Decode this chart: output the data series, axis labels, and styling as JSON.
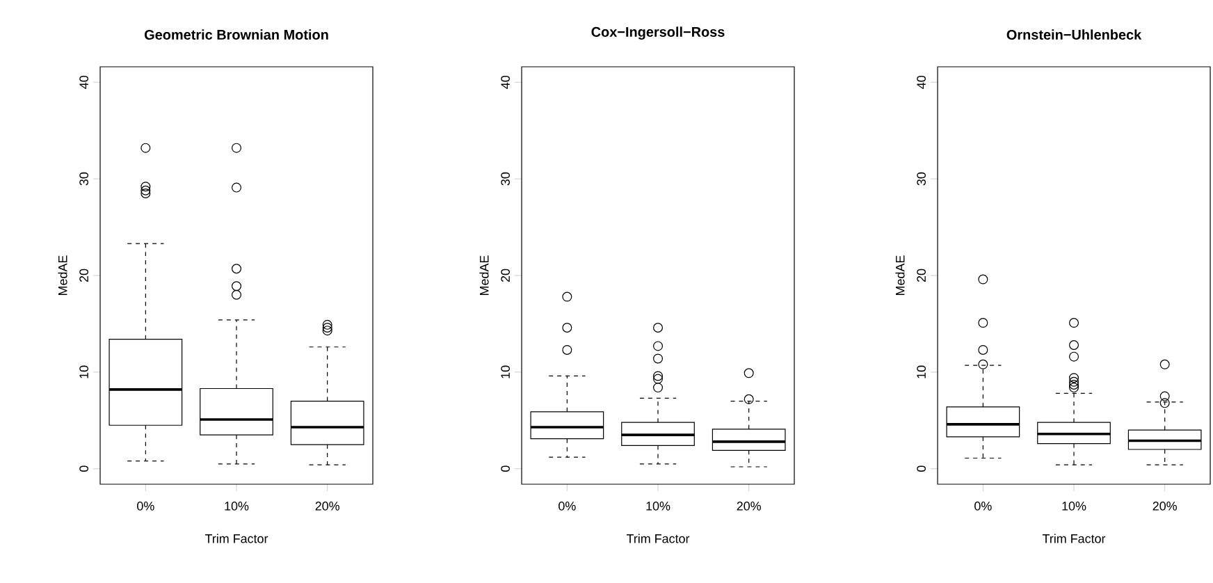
{
  "chart_data": [
    {
      "type": "box",
      "title": "Geometric Brownian Motion",
      "xlabel": "Trim Factor",
      "ylabel": "MedAE",
      "categories": [
        "0%",
        "10%",
        "20%"
      ],
      "ylim": [
        -1.6,
        41.6
      ],
      "yticks": [
        0,
        10,
        20,
        30,
        40
      ],
      "marker": "circle",
      "color": "#000000",
      "boxes": [
        {
          "low": 0.8,
          "q1": 4.5,
          "median": 8.2,
          "q3": 13.4,
          "high": 23.3,
          "outliers": [
            33.2,
            29.2,
            28.8,
            28.5
          ]
        },
        {
          "low": 0.5,
          "q1": 3.5,
          "median": 5.1,
          "q3": 8.3,
          "high": 15.4,
          "outliers": [
            33.2,
            29.1,
            20.7,
            18.9,
            18.0
          ]
        },
        {
          "low": 0.4,
          "q1": 2.5,
          "median": 4.3,
          "q3": 7.0,
          "high": 12.6,
          "outliers": [
            14.9,
            14.6,
            14.3
          ]
        }
      ]
    },
    {
      "type": "box",
      "title": "Cox−Ingersoll−Ross",
      "xlabel": "Trim Factor",
      "ylabel": "MedAE",
      "categories": [
        "0%",
        "10%",
        "20%"
      ],
      "ylim": [
        -1.6,
        41.6
      ],
      "yticks": [
        0,
        10,
        20,
        30,
        40
      ],
      "marker": "circle",
      "color": "#000000",
      "boxes": [
        {
          "low": 1.2,
          "q1": 3.1,
          "median": 4.3,
          "q3": 5.9,
          "high": 9.6,
          "outliers": [
            17.8,
            14.6,
            12.3
          ]
        },
        {
          "low": 0.5,
          "q1": 2.4,
          "median": 3.5,
          "q3": 4.8,
          "high": 7.3,
          "outliers": [
            14.6,
            12.7,
            11.4,
            9.6,
            9.3,
            8.4
          ]
        },
        {
          "low": 0.2,
          "q1": 1.9,
          "median": 2.8,
          "q3": 4.1,
          "high": 7.0,
          "outliers": [
            9.9,
            7.2
          ]
        }
      ]
    },
    {
      "type": "box",
      "title": "Ornstein−Uhlenbeck",
      "xlabel": "Trim Factor",
      "ylabel": "MedAE",
      "categories": [
        "0%",
        "10%",
        "20%"
      ],
      "ylim": [
        -1.6,
        41.6
      ],
      "yticks": [
        0,
        10,
        20,
        30,
        40
      ],
      "marker": "circle",
      "color": "#000000",
      "boxes": [
        {
          "low": 1.1,
          "q1": 3.3,
          "median": 4.6,
          "q3": 6.4,
          "high": 10.7,
          "outliers": [
            19.6,
            15.1,
            12.3,
            10.8
          ]
        },
        {
          "low": 0.4,
          "q1": 2.6,
          "median": 3.6,
          "q3": 4.8,
          "high": 7.8,
          "outliers": [
            15.1,
            12.8,
            11.6,
            9.4,
            9.0,
            8.7,
            8.4
          ]
        },
        {
          "low": 0.4,
          "q1": 2.0,
          "median": 2.9,
          "q3": 4.0,
          "high": 6.9,
          "outliers": [
            10.8,
            7.5,
            6.8
          ]
        }
      ]
    }
  ]
}
